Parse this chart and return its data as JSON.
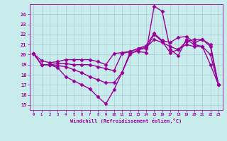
{
  "xlabel": "Windchill (Refroidissement éolien,°C)",
  "bg_color": "#c8ecec",
  "line_color": "#990099",
  "grid_color": "#b0c8d8",
  "marker": "D",
  "markersize": 2.5,
  "linewidth": 1.0,
  "xlim": [
    -0.5,
    23.5
  ],
  "ylim": [
    14.5,
    25.0
  ],
  "yticks": [
    15,
    16,
    17,
    18,
    19,
    20,
    21,
    22,
    23,
    24
  ],
  "xticks": [
    0,
    1,
    2,
    3,
    4,
    5,
    6,
    7,
    8,
    9,
    10,
    11,
    12,
    13,
    14,
    15,
    16,
    17,
    18,
    19,
    20,
    21,
    22,
    23
  ],
  "lines": [
    [
      20.1,
      19.0,
      19.0,
      18.7,
      17.8,
      17.4,
      17.0,
      16.6,
      15.8,
      15.1,
      16.5,
      18.2,
      20.2,
      20.3,
      20.2,
      24.8,
      24.3,
      20.5,
      19.9,
      21.5,
      21.0,
      20.8,
      19.0,
      17.0
    ],
    [
      20.1,
      19.0,
      19.0,
      18.9,
      18.8,
      18.5,
      18.2,
      17.8,
      17.5,
      17.2,
      17.2,
      18.2,
      20.0,
      20.5,
      20.6,
      22.0,
      21.3,
      20.2,
      20.5,
      21.3,
      21.5,
      21.5,
      21.0,
      17.0
    ],
    [
      20.1,
      19.0,
      19.0,
      19.1,
      19.1,
      19.0,
      19.0,
      19.0,
      18.8,
      18.6,
      18.4,
      20.1,
      20.3,
      20.6,
      20.7,
      21.5,
      21.2,
      20.8,
      20.5,
      21.0,
      20.8,
      20.8,
      20.0,
      17.0
    ],
    [
      20.1,
      19.4,
      19.2,
      19.3,
      19.5,
      19.5,
      19.5,
      19.5,
      19.3,
      19.0,
      20.1,
      20.2,
      20.3,
      20.6,
      20.9,
      22.1,
      21.4,
      21.2,
      21.7,
      21.8,
      21.2,
      21.5,
      20.8,
      17.0
    ]
  ]
}
